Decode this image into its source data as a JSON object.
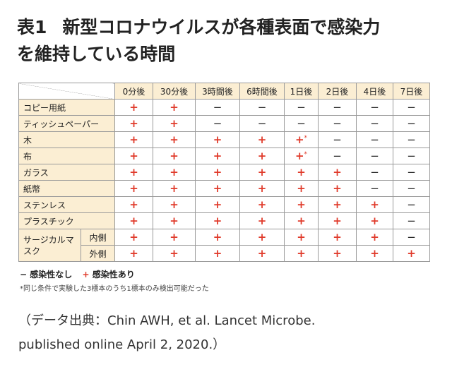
{
  "title": {
    "number": "表1",
    "line1": "新型コロナウイルスが各種表面で感染力",
    "line2": "を維持している時間"
  },
  "table": {
    "columns": [
      "0分後",
      "30分後",
      "3時間後",
      "6時間後",
      "1日後",
      "2日後",
      "4日後",
      "7日後"
    ],
    "rows": [
      {
        "label": "コピー用紙",
        "values": [
          "+",
          "+",
          "−",
          "−",
          "−",
          "−",
          "−",
          "−"
        ]
      },
      {
        "label": "ティッシュペーパー",
        "values": [
          "+",
          "+",
          "−",
          "−",
          "−",
          "−",
          "−",
          "−"
        ]
      },
      {
        "label": "木",
        "values": [
          "+",
          "+",
          "+",
          "+",
          "+*",
          "−",
          "−",
          "−"
        ]
      },
      {
        "label": "布",
        "values": [
          "+",
          "+",
          "+",
          "+",
          "+*",
          "−",
          "−",
          "−"
        ]
      },
      {
        "label": "ガラス",
        "values": [
          "+",
          "+",
          "+",
          "+",
          "+",
          "+",
          "−",
          "−"
        ]
      },
      {
        "label": "紙幣",
        "values": [
          "+",
          "+",
          "+",
          "+",
          "+",
          "+",
          "−",
          "−"
        ]
      },
      {
        "label": "ステンレス",
        "values": [
          "+",
          "+",
          "+",
          "+",
          "+",
          "+",
          "+",
          "−"
        ]
      },
      {
        "label": "プラスチック",
        "values": [
          "+",
          "+",
          "+",
          "+",
          "+",
          "+",
          "+",
          "−"
        ]
      }
    ],
    "group": {
      "label": "サージカルマスク",
      "subrows": [
        {
          "label": "内側",
          "values": [
            "+",
            "+",
            "+",
            "+",
            "+",
            "+",
            "+",
            "−"
          ]
        },
        {
          "label": "外側",
          "values": [
            "+",
            "+",
            "+",
            "+",
            "+",
            "+",
            "+",
            "+"
          ]
        }
      ]
    },
    "colors": {
      "plus": "#e03a2a",
      "minus": "#222222",
      "header_bg": "#fbeed3"
    }
  },
  "legend": {
    "minus_symbol": "−",
    "minus_label": "感染性なし",
    "plus_symbol": "+",
    "plus_label": "感染性あり"
  },
  "footnote": "*同じ条件で実験した3標本のうち1標本のみ検出可能だった",
  "source": {
    "line1": "（データ出典：Chin AWH, et al. Lancet Microbe.",
    "line2": "published online April 2, 2020.）"
  }
}
